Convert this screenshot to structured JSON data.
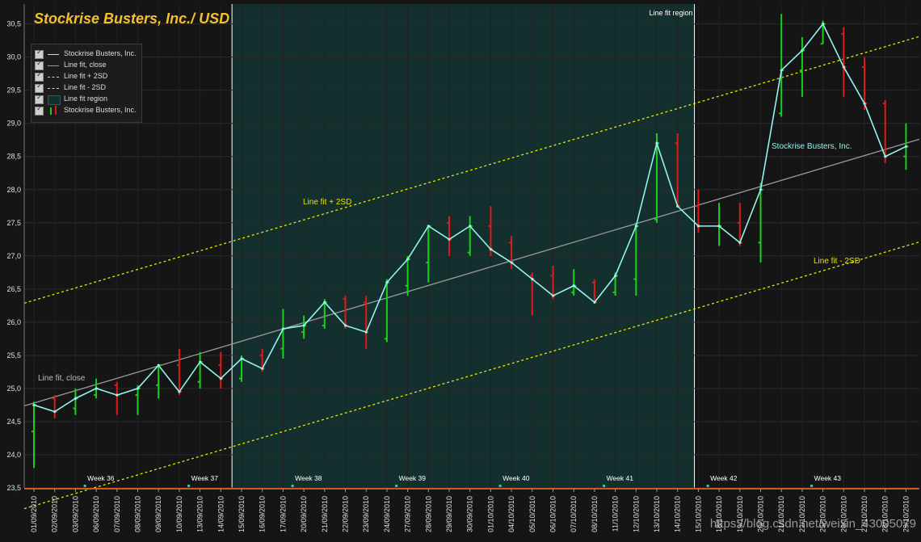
{
  "chart_data": {
    "type": "line",
    "title": "Stockrise Busters, Inc./ USD",
    "ylim": [
      23.5,
      30.8
    ],
    "y_ticks": [
      23.5,
      24.0,
      24.5,
      25.0,
      25.5,
      26.0,
      26.5,
      27.0,
      27.5,
      28.0,
      28.5,
      29.0,
      29.5,
      30.0,
      30.5
    ],
    "y_tick_labels": [
      "23,5",
      "24,0",
      "24,5",
      "25,0",
      "25,5",
      "26,0",
      "26,5",
      "27,0",
      "27,5",
      "28,0",
      "28,5",
      "29,0",
      "29,5",
      "30,0",
      "30,5"
    ],
    "x_labels": [
      "01/09/2010",
      "02/09/2010",
      "03/09/2010",
      "06/09/2010",
      "07/09/2010",
      "08/09/2010",
      "09/09/2010",
      "10/09/2010",
      "13/09/2010",
      "14/09/2010",
      "15/09/2010",
      "16/09/2010",
      "17/09/2010",
      "20/09/2010",
      "21/09/2010",
      "22/09/2010",
      "23/09/2010",
      "24/09/2010",
      "27/09/2010",
      "28/09/2010",
      "29/09/2010",
      "30/09/2010",
      "01/10/2010",
      "04/10/2010",
      "05/10/2010",
      "06/10/2010",
      "07/10/2010",
      "08/10/2010",
      "11/10/2010",
      "12/10/2010",
      "13/10/2010",
      "14/10/2010",
      "15/10/2010",
      "18/10/2010",
      "19/10/2010",
      "20/10/2010",
      "21/10/2010",
      "22/10/2010",
      "25/10/2010",
      "26/10/2010",
      "27/10/2010",
      "28/10/2010",
      "29/10/2010"
    ],
    "close": [
      24.75,
      24.65,
      24.85,
      25.0,
      24.9,
      25.0,
      25.35,
      24.95,
      25.4,
      25.15,
      25.45,
      25.3,
      25.9,
      25.95,
      26.3,
      25.95,
      25.85,
      26.6,
      26.95,
      27.45,
      27.25,
      27.45,
      27.1,
      26.9,
      26.65,
      26.4,
      26.55,
      26.3,
      26.7,
      27.45,
      28.7,
      27.75,
      27.45,
      27.45,
      27.2,
      28.0,
      29.8,
      30.1,
      30.5,
      29.85,
      29.3,
      28.5,
      28.65
    ],
    "ohlc": [
      {
        "o": 24.35,
        "h": 24.8,
        "l": 23.8,
        "c": 24.75,
        "up": true
      },
      {
        "o": 24.85,
        "h": 24.9,
        "l": 24.55,
        "c": 24.65,
        "up": false
      },
      {
        "o": 24.7,
        "h": 25.0,
        "l": 24.6,
        "c": 24.85,
        "up": true
      },
      {
        "o": 24.9,
        "h": 25.15,
        "l": 24.85,
        "c": 25.0,
        "up": true
      },
      {
        "o": 25.05,
        "h": 25.1,
        "l": 24.6,
        "c": 24.9,
        "up": false
      },
      {
        "o": 24.9,
        "h": 25.05,
        "l": 24.6,
        "c": 25.0,
        "up": true
      },
      {
        "o": 25.05,
        "h": 25.35,
        "l": 24.85,
        "c": 25.35,
        "up": true
      },
      {
        "o": 25.35,
        "h": 25.6,
        "l": 24.9,
        "c": 24.95,
        "up": false
      },
      {
        "o": 25.1,
        "h": 25.55,
        "l": 25.0,
        "c": 25.4,
        "up": true
      },
      {
        "o": 25.35,
        "h": 25.55,
        "l": 25.0,
        "c": 25.15,
        "up": false
      },
      {
        "o": 25.15,
        "h": 25.5,
        "l": 25.1,
        "c": 25.45,
        "up": true
      },
      {
        "o": 25.5,
        "h": 25.6,
        "l": 25.25,
        "c": 25.3,
        "up": false
      },
      {
        "o": 25.6,
        "h": 26.2,
        "l": 25.45,
        "c": 25.9,
        "up": true
      },
      {
        "o": 25.85,
        "h": 26.1,
        "l": 25.75,
        "c": 25.95,
        "up": true
      },
      {
        "o": 25.95,
        "h": 26.35,
        "l": 25.9,
        "c": 26.3,
        "up": true
      },
      {
        "o": 26.35,
        "h": 26.4,
        "l": 25.9,
        "c": 25.95,
        "up": false
      },
      {
        "o": 26.3,
        "h": 26.4,
        "l": 25.6,
        "c": 25.85,
        "up": false
      },
      {
        "o": 25.75,
        "h": 26.65,
        "l": 25.7,
        "c": 26.6,
        "up": true
      },
      {
        "o": 26.55,
        "h": 27.0,
        "l": 26.4,
        "c": 26.95,
        "up": true
      },
      {
        "o": 26.9,
        "h": 27.45,
        "l": 26.6,
        "c": 27.45,
        "up": true
      },
      {
        "o": 27.5,
        "h": 27.6,
        "l": 27.0,
        "c": 27.25,
        "up": false
      },
      {
        "o": 27.05,
        "h": 27.6,
        "l": 27.0,
        "c": 27.45,
        "up": true
      },
      {
        "o": 27.45,
        "h": 27.75,
        "l": 27.0,
        "c": 27.1,
        "up": false
      },
      {
        "o": 27.2,
        "h": 27.3,
        "l": 26.8,
        "c": 26.9,
        "up": false
      },
      {
        "o": 26.7,
        "h": 26.75,
        "l": 26.1,
        "c": 26.65,
        "up": false
      },
      {
        "o": 26.7,
        "h": 26.85,
        "l": 26.35,
        "c": 26.4,
        "up": false
      },
      {
        "o": 26.45,
        "h": 26.8,
        "l": 26.4,
        "c": 26.55,
        "up": true
      },
      {
        "o": 26.6,
        "h": 26.65,
        "l": 26.3,
        "c": 26.3,
        "up": false
      },
      {
        "o": 26.45,
        "h": 26.75,
        "l": 26.4,
        "c": 26.7,
        "up": true
      },
      {
        "o": 26.65,
        "h": 27.5,
        "l": 26.4,
        "c": 27.45,
        "up": true
      },
      {
        "o": 27.55,
        "h": 28.85,
        "l": 27.5,
        "c": 28.7,
        "up": true
      },
      {
        "o": 28.7,
        "h": 28.85,
        "l": 27.75,
        "c": 27.75,
        "up": false
      },
      {
        "o": 27.75,
        "h": 28.0,
        "l": 27.35,
        "c": 27.45,
        "up": false
      },
      {
        "o": 27.45,
        "h": 27.8,
        "l": 27.15,
        "c": 27.45,
        "up": true
      },
      {
        "o": 27.5,
        "h": 27.8,
        "l": 27.15,
        "c": 27.2,
        "up": false
      },
      {
        "o": 27.2,
        "h": 28.1,
        "l": 26.9,
        "c": 28.0,
        "up": true
      },
      {
        "o": 29.15,
        "h": 30.65,
        "l": 29.1,
        "c": 29.8,
        "up": true
      },
      {
        "o": 29.8,
        "h": 30.3,
        "l": 29.4,
        "c": 30.1,
        "up": true
      },
      {
        "o": 30.2,
        "h": 30.55,
        "l": 30.2,
        "c": 30.5,
        "up": true
      },
      {
        "o": 30.35,
        "h": 30.45,
        "l": 29.4,
        "c": 29.85,
        "up": false
      },
      {
        "o": 29.85,
        "h": 30.0,
        "l": 29.2,
        "c": 29.3,
        "up": false
      },
      {
        "o": 29.3,
        "h": 29.35,
        "l": 28.4,
        "c": 28.5,
        "up": false
      },
      {
        "o": 28.5,
        "h": 29.0,
        "l": 28.3,
        "c": 28.65,
        "up": true
      }
    ],
    "line_fit": {
      "start": 24.78,
      "end": 28.7
    },
    "band_offset": 1.55,
    "region": {
      "from_index": 10,
      "to_index": 32
    },
    "weeks": [
      {
        "label": "Week 36",
        "index": 3
      },
      {
        "label": "Week 37",
        "index": 8
      },
      {
        "label": "Week 38",
        "index": 13
      },
      {
        "label": "Week 39",
        "index": 18
      },
      {
        "label": "Week 40",
        "index": 23
      },
      {
        "label": "Week 41",
        "index": 28
      },
      {
        "label": "Week 42",
        "index": 33
      },
      {
        "label": "Week 43",
        "index": 38
      }
    ],
    "annotations": {
      "region_label": "Line fit region",
      "fit_label": "Line fit, close",
      "upper_label": "Line fit + 2SD",
      "lower_label": "Line fit - 2SD",
      "series_label": "Stockrise Busters, Inc."
    },
    "legend": {
      "position": "top-left",
      "items": [
        "Stockrise Busters, Inc.",
        "Line fit, close",
        "Line fit + 2SD",
        "Line fit - 2SD",
        "Line fit region",
        "Stockrise Busters, Inc."
      ]
    },
    "colors": {
      "background": "#151515",
      "region": "#13302f",
      "close_line": "#8ff5ee",
      "fit_line": "#9a9a9a",
      "band": "#e6e600",
      "up": "#19d019",
      "down": "#e01a1a",
      "title": "#f5c02a",
      "axis_bottom": "#d05a1e"
    }
  },
  "watermark": "https://blog.csdn.net/weixin_43005079"
}
